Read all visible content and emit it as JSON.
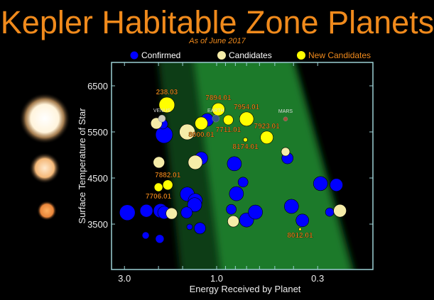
{
  "chart_data": {
    "type": "scatter",
    "title": "Kepler Habitable Zone Planets",
    "subtitle": "As of June 2017",
    "xlabel": "Energy Received by Planet",
    "ylabel": "Surface Temperature of Star",
    "x_scale": "log-reversed",
    "xlim": [
      4.5,
      0.2
    ],
    "ylim": [
      2500,
      7000
    ],
    "x_ticks": [
      {
        "value": 3.0,
        "label": "3.0"
      },
      {
        "value": 1.0,
        "label": "1.0"
      },
      {
        "value": 0.3,
        "label": "0.3"
      }
    ],
    "y_ticks": [
      {
        "value": 3500,
        "label": "3500"
      },
      {
        "value": 4500,
        "label": "4500"
      },
      {
        "value": 5500,
        "label": "5500"
      },
      {
        "value": 6500,
        "label": "6500"
      }
    ],
    "legend": {
      "placement": "top",
      "entries": [
        {
          "label": "Confirmed",
          "color": "#0000ff"
        },
        {
          "label": "Candidates",
          "color": "#f5eca8"
        },
        {
          "label": "New Candidates",
          "color": "#ffff00"
        }
      ]
    },
    "series": [
      {
        "name": "Confirmed",
        "color": "#0000ff",
        "points": [
          [
            2.9,
            3750,
            11
          ],
          [
            2.31,
            3790,
            9
          ],
          [
            1.95,
            3790,
            10
          ],
          [
            1.87,
            3750,
            9
          ],
          [
            1.87,
            5440,
            12
          ],
          [
            1.9,
            5670,
            7
          ],
          [
            1.12,
            5760,
            9
          ],
          [
            1.2,
            4930,
            9
          ],
          [
            0.81,
            4810,
            10
          ],
          [
            0.43,
            4930,
            8
          ],
          [
            1.42,
            4150,
            10
          ],
          [
            1.29,
            4010,
            10
          ],
          [
            1.3,
            3920,
            10
          ],
          [
            1.43,
            3750,
            8
          ],
          [
            1.38,
            3440,
            4
          ],
          [
            1.22,
            3410,
            8
          ],
          [
            2.33,
            3255,
            5
          ],
          [
            1.97,
            3180,
            6
          ],
          [
            0.73,
            4410,
            7
          ],
          [
            0.79,
            4160,
            10
          ],
          [
            0.84,
            3820,
            7
          ],
          [
            0.7,
            3590,
            10
          ],
          [
            0.63,
            3760,
            10
          ],
          [
            0.41,
            3885,
            10
          ],
          [
            0.36,
            3580,
            9
          ],
          [
            0.29,
            4380,
            10
          ],
          [
            0.24,
            4350,
            9
          ],
          [
            0.26,
            3760,
            6
          ]
        ]
      },
      {
        "name": "Candidates",
        "color": "#f5eca8",
        "points": [
          [
            2.05,
            5685,
            8
          ],
          [
            1.42,
            5500,
            11
          ],
          [
            0.44,
            5070,
            6
          ],
          [
            1.99,
            4840,
            8
          ],
          [
            1.29,
            4840,
            10
          ],
          [
            1.71,
            3730,
            8
          ],
          [
            0.82,
            3560,
            8
          ],
          [
            0.23,
            3790,
            9
          ]
        ]
      },
      {
        "name": "New Candidates",
        "color": "#ffff00",
        "points": [
          {
            "x": 1.81,
            "y": 6085,
            "size": 11,
            "label": "238.03",
            "label_side": "above"
          },
          {
            "x": 0.98,
            "y": 5990,
            "size": 9,
            "label": "7894.01",
            "label_side": "above"
          },
          {
            "x": 0.87,
            "y": 5760,
            "size": 7,
            "label": "7711.01",
            "label_side": "below"
          },
          {
            "x": 1.2,
            "y": 5685,
            "size": 9,
            "label": "8000.01",
            "label_side": "below"
          },
          {
            "x": 0.7,
            "y": 5780,
            "size": 10,
            "label": "7954.01",
            "label_side": "above"
          },
          {
            "x": 0.55,
            "y": 5380,
            "size": 9,
            "label": "7923.01",
            "label_side": "above"
          },
          {
            "x": 0.71,
            "y": 5330,
            "size": 3,
            "label": "8174.01",
            "label_side": "below"
          },
          {
            "x": 1.79,
            "y": 4350,
            "size": 7,
            "label": "7882.01",
            "label_side": "above"
          },
          {
            "x": 2.0,
            "y": 4300,
            "size": 6,
            "label": "7706.01",
            "label_side": "below"
          },
          {
            "x": 0.37,
            "y": 3390,
            "size": 2,
            "label": "8012.01",
            "label_side": "below"
          }
        ]
      }
    ],
    "solar_system": [
      {
        "label": "VENUS",
        "x": 1.92,
        "y": 5790,
        "color": "#ccccbb"
      },
      {
        "label": "EARTH",
        "x": 1.01,
        "y": 5790,
        "color": "#335588"
      },
      {
        "label": "MARS",
        "x": 0.44,
        "y": 5780,
        "color": "#a0553a"
      }
    ],
    "habitable_zone": {
      "colors": {
        "inner": "#0f3d16",
        "core": "#1a7a2a"
      }
    },
    "star_icons": [
      "hot-star",
      "sun-like-star",
      "cool-star"
    ]
  }
}
